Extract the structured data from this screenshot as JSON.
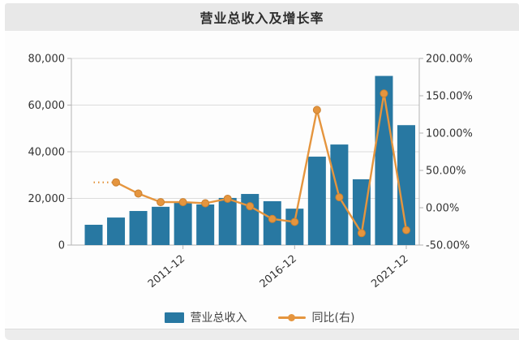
{
  "title": "营业总收入及增长率",
  "legend": {
    "bar_label": "营业总收入",
    "line_label": "同比(右)"
  },
  "chart_data": {
    "type": "bar",
    "subtype": "bar+line dual-axis combo",
    "title": "营业总收入及增长率",
    "x_tick_labels": [
      {
        "index": 4,
        "label": "2011-12"
      },
      {
        "index": 9,
        "label": "2016-12"
      },
      {
        "index": 14,
        "label": "2021-12"
      }
    ],
    "series": [
      {
        "name": "营业总收入",
        "type": "bar",
        "axis": "left",
        "values": [
          8700,
          11800,
          14600,
          16400,
          18400,
          17400,
          20200,
          21900,
          18800,
          15600,
          37900,
          43100,
          28200,
          72500,
          51400
        ]
      },
      {
        "name": "同比(右)",
        "type": "line",
        "axis": "right",
        "unit": "%",
        "first_segment_dotted": true,
        "markers_from_index": 1,
        "values": [
          34,
          34,
          19,
          7.5,
          7.5,
          6,
          12,
          2,
          -15,
          -19,
          131,
          14,
          -34,
          153,
          -30
        ]
      }
    ],
    "left_axis": {
      "min": 0,
      "max": 80000,
      "tick_step": 20000,
      "tick_labels": [
        "0",
        "20,000",
        "40,000",
        "60,000",
        "80,000"
      ]
    },
    "right_axis": {
      "min": -50,
      "max": 200,
      "tick_step": 50,
      "tick_labels": [
        "-50.00%",
        "0.00%",
        "50.00%",
        "100.00%",
        "150.00%",
        "200.00%"
      ]
    },
    "grid": true,
    "legend_position": "bottom",
    "colors": {
      "bar": "#2878a2",
      "line": "#e5953e",
      "marker_edge": "#cb8130",
      "grid": "#dcdcdc",
      "axis": "#b3b3b3",
      "text": "#333333",
      "header_bg": "#e8e8e8"
    }
  }
}
